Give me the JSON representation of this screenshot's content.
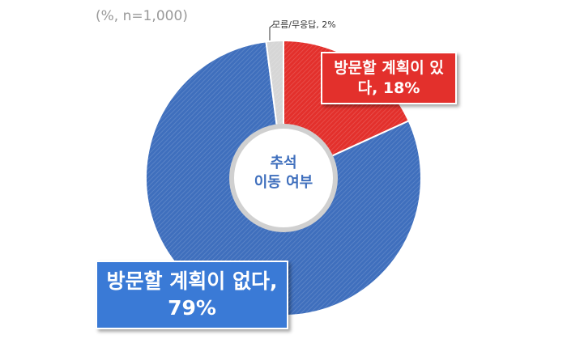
{
  "chart_data": {
    "type": "donut",
    "subtitle": "(%, n=1,000)",
    "center_label": [
      "추석",
      "이동 여부"
    ],
    "categories": [
      "방문할 계획이 있다",
      "방문할 계획이 없다",
      "모름/무응답"
    ],
    "values": [
      18,
      79,
      2
    ],
    "value_labels": [
      "방문할 계획이 있다, 18%",
      "방문할 계획이 없다, 79%",
      "모름/무응답, 2%"
    ],
    "colors": [
      "#e3302c",
      "#3f6fbd",
      "#d6d6d6"
    ]
  }
}
